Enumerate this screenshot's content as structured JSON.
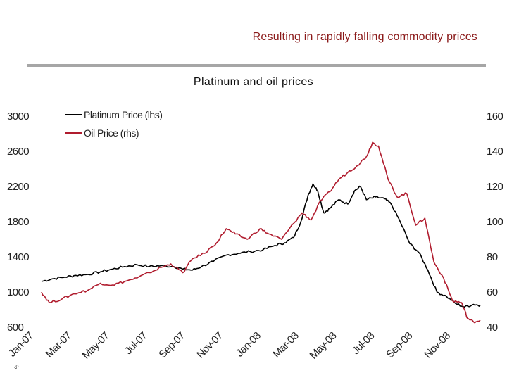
{
  "header": {
    "headline": "Resulting in rapidly falling commodity prices"
  },
  "footer": {
    "corner_mark": "∞"
  },
  "chart_data": {
    "type": "line",
    "title": "Platinum and oil prices",
    "x_tick_labels": [
      "Jan-07",
      "Mar-07",
      "May-07",
      "Jul-07",
      "Sep-07",
      "Nov-07",
      "Jan-08",
      "Mar-08",
      "May-08",
      "Jul-08",
      "Sep-08",
      "Nov-08"
    ],
    "x_range": [
      "2007-01-01",
      "2008-12-31"
    ],
    "y_left": {
      "ylim": [
        600,
        3000
      ],
      "ticks": [
        "3000",
        "2600",
        "2200",
        "1800",
        "1400",
        "1000",
        "600"
      ]
    },
    "y_right": {
      "ylim": [
        40,
        160
      ],
      "ticks": [
        "160",
        "140",
        "120",
        "100",
        "80",
        "60",
        "40"
      ]
    },
    "grid": false,
    "legend_position": "top-left",
    "series": [
      {
        "name": "Platinum Price (lhs)",
        "axis": "left",
        "color": "#000000",
        "points": [
          [
            "2007-01-02",
            1120
          ],
          [
            "2007-01-20",
            1150
          ],
          [
            "2007-02-10",
            1170
          ],
          [
            "2007-02-28",
            1190
          ],
          [
            "2007-03-20",
            1200
          ],
          [
            "2007-04-10",
            1230
          ],
          [
            "2007-04-30",
            1260
          ],
          [
            "2007-05-20",
            1290
          ],
          [
            "2007-06-10",
            1310
          ],
          [
            "2007-06-30",
            1290
          ],
          [
            "2007-07-20",
            1300
          ],
          [
            "2007-08-10",
            1290
          ],
          [
            "2007-08-25",
            1260
          ],
          [
            "2007-09-10",
            1250
          ],
          [
            "2007-09-25",
            1290
          ],
          [
            "2007-10-15",
            1350
          ],
          [
            "2007-11-05",
            1420
          ],
          [
            "2007-11-25",
            1440
          ],
          [
            "2007-12-15",
            1460
          ],
          [
            "2008-01-05",
            1480
          ],
          [
            "2008-01-25",
            1530
          ],
          [
            "2008-02-10",
            1560
          ],
          [
            "2008-02-25",
            1620
          ],
          [
            "2008-03-08",
            1800
          ],
          [
            "2008-03-20",
            2100
          ],
          [
            "2008-03-28",
            2230
          ],
          [
            "2008-04-05",
            2150
          ],
          [
            "2008-04-15",
            1900
          ],
          [
            "2008-04-25",
            1950
          ],
          [
            "2008-05-10",
            2050
          ],
          [
            "2008-05-25",
            2000
          ],
          [
            "2008-06-05",
            2150
          ],
          [
            "2008-06-15",
            2200
          ],
          [
            "2008-06-25",
            2050
          ],
          [
            "2008-07-10",
            2080
          ],
          [
            "2008-07-25",
            2060
          ],
          [
            "2008-08-05",
            2000
          ],
          [
            "2008-08-20",
            1800
          ],
          [
            "2008-09-05",
            1550
          ],
          [
            "2008-09-20",
            1450
          ],
          [
            "2008-10-05",
            1250
          ],
          [
            "2008-10-20",
            1000
          ],
          [
            "2008-11-05",
            950
          ],
          [
            "2008-11-20",
            870
          ],
          [
            "2008-12-05",
            830
          ],
          [
            "2008-12-20",
            860
          ],
          [
            "2008-12-31",
            850
          ]
        ]
      },
      {
        "name": "Oil Price (rhs)",
        "axis": "right",
        "color": "#b01c2e",
        "points": [
          [
            "2007-01-02",
            60
          ],
          [
            "2007-01-15",
            54
          ],
          [
            "2007-02-05",
            56
          ],
          [
            "2007-02-25",
            59
          ],
          [
            "2007-03-20",
            61
          ],
          [
            "2007-04-10",
            65
          ],
          [
            "2007-04-30",
            64
          ],
          [
            "2007-05-20",
            66
          ],
          [
            "2007-06-10",
            68
          ],
          [
            "2007-06-30",
            71
          ],
          [
            "2007-07-20",
            74
          ],
          [
            "2007-08-05",
            76
          ],
          [
            "2007-08-25",
            71
          ],
          [
            "2007-09-10",
            79
          ],
          [
            "2007-09-30",
            82
          ],
          [
            "2007-10-20",
            88
          ],
          [
            "2007-11-05",
            96
          ],
          [
            "2007-11-20",
            93
          ],
          [
            "2007-12-10",
            90
          ],
          [
            "2007-12-31",
            96
          ],
          [
            "2008-01-15",
            93
          ],
          [
            "2008-02-05",
            90
          ],
          [
            "2008-02-25",
            99
          ],
          [
            "2008-03-10",
            105
          ],
          [
            "2008-03-25",
            101
          ],
          [
            "2008-04-10",
            112
          ],
          [
            "2008-04-25",
            117
          ],
          [
            "2008-05-10",
            124
          ],
          [
            "2008-05-25",
            128
          ],
          [
            "2008-06-10",
            132
          ],
          [
            "2008-06-25",
            137
          ],
          [
            "2008-07-05",
            145
          ],
          [
            "2008-07-15",
            143
          ],
          [
            "2008-07-31",
            124
          ],
          [
            "2008-08-15",
            114
          ],
          [
            "2008-08-31",
            116
          ],
          [
            "2008-09-15",
            98
          ],
          [
            "2008-09-30",
            102
          ],
          [
            "2008-10-15",
            77
          ],
          [
            "2008-10-31",
            68
          ],
          [
            "2008-11-15",
            55
          ],
          [
            "2008-11-30",
            54
          ],
          [
            "2008-12-10",
            45
          ],
          [
            "2008-12-20",
            43
          ],
          [
            "2008-12-31",
            44
          ]
        ]
      }
    ]
  }
}
